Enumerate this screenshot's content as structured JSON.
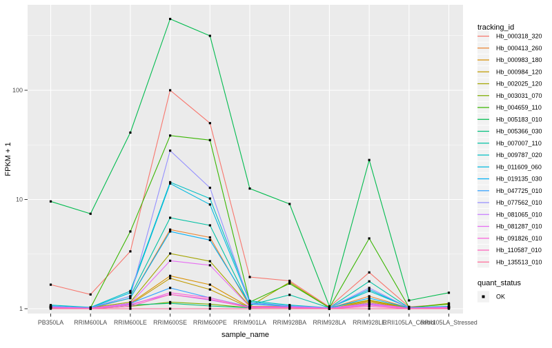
{
  "chart_data": {
    "type": "line",
    "title": "",
    "xlabel": "sample_name",
    "ylabel": "FPKM + 1",
    "y_scale": "log10",
    "y_ticks": [
      1,
      10,
      100
    ],
    "y_tick_labels": [
      "1",
      "10",
      "100"
    ],
    "y_minor_ticks": [
      3.162,
      31.62,
      316.2
    ],
    "ylim": [
      0.9,
      480
    ],
    "grid": "on",
    "panel_bg": "#EBEBEB",
    "grid_color": "#FFFFFF",
    "tick_text_color": "#4D4D4D",
    "axis_title_color": "#000000",
    "point_color": "#000000",
    "point_shape": "square",
    "categories": [
      "PB350LA",
      "RRIM600LA",
      "RRIM600LE",
      "RRIM600SE",
      "RRIM600PE",
      "RRIM901LA",
      "RRIM928BA",
      "RRIM928LA",
      "RRIM928LE",
      "RRII105LA_Control",
      "RRII105LA_Stressed"
    ],
    "series": [
      {
        "name": "Hb_000318_320",
        "color": "#F8766D",
        "values": [
          1.66,
          1.35,
          3.35,
          100,
          50,
          1.95,
          1.8,
          1.04,
          2.15,
          1.04,
          1.1
        ]
      },
      {
        "name": "Hb_000413_260",
        "color": "#EA8331",
        "values": [
          1.03,
          1.01,
          1.25,
          5.3,
          4.5,
          1.05,
          1.05,
          1.01,
          1.3,
          1.02,
          1.04
        ]
      },
      {
        "name": "Hb_000983_180",
        "color": "#D89000",
        "values": [
          1.02,
          1.0,
          1.12,
          2.0,
          1.66,
          1.03,
          1.04,
          1.0,
          1.18,
          1.01,
          1.03
        ]
      },
      {
        "name": "Hb_000984_120",
        "color": "#C09B00",
        "values": [
          1.02,
          1.0,
          1.1,
          1.9,
          1.5,
          1.02,
          1.03,
          1.0,
          1.15,
          1.01,
          1.02
        ]
      },
      {
        "name": "Hb_002025_120",
        "color": "#A3A500",
        "values": [
          1.04,
          1.02,
          1.15,
          3.2,
          2.72,
          1.05,
          1.75,
          1.02,
          1.2,
          1.02,
          1.12
        ]
      },
      {
        "name": "Hb_003031_070",
        "color": "#7CAE00",
        "values": [
          1.02,
          1.0,
          1.05,
          1.15,
          1.1,
          1.02,
          1.02,
          1.0,
          1.12,
          1.01,
          1.02
        ]
      },
      {
        "name": "Hb_004659_110",
        "color": "#39B600",
        "values": [
          1.05,
          1.02,
          5.1,
          38.5,
          35,
          1.15,
          1.7,
          1.02,
          4.4,
          1.03,
          1.1
        ]
      },
      {
        "name": "Hb_005183_010",
        "color": "#00BB4E",
        "values": [
          9.6,
          7.4,
          41,
          450,
          315,
          12.6,
          9.1,
          1.05,
          23,
          1.19,
          1.4
        ]
      },
      {
        "name": "Hb_005366_030",
        "color": "#00BF7D",
        "values": [
          1.03,
          1.01,
          1.08,
          1.12,
          1.06,
          1.02,
          1.03,
          1.01,
          1.1,
          1.01,
          1.02
        ]
      },
      {
        "name": "Hb_007007_110",
        "color": "#00C1A3",
        "values": [
          1.04,
          1.02,
          1.3,
          6.8,
          5.8,
          1.08,
          1.34,
          1.02,
          1.78,
          1.02,
          1.05
        ]
      },
      {
        "name": "Hb_009787_020",
        "color": "#00BFC4",
        "values": [
          1.08,
          1.03,
          1.45,
          14.4,
          10.2,
          1.18,
          1.08,
          1.02,
          1.45,
          1.03,
          1.05
        ]
      },
      {
        "name": "Hb_011609_060",
        "color": "#00BAE0",
        "values": [
          1.06,
          1.02,
          1.4,
          14.0,
          9.0,
          1.15,
          1.06,
          1.02,
          1.5,
          1.02,
          1.04
        ]
      },
      {
        "name": "Hb_019135_030",
        "color": "#00B0F6",
        "values": [
          1.05,
          1.02,
          1.25,
          5.1,
          4.25,
          1.1,
          1.05,
          1.01,
          1.25,
          1.02,
          1.04
        ]
      },
      {
        "name": "Hb_047725_010",
        "color": "#35A2FF",
        "values": [
          1.04,
          1.01,
          1.12,
          1.55,
          1.26,
          1.04,
          1.03,
          1.01,
          1.12,
          1.01,
          1.03
        ]
      },
      {
        "name": "Hb_077562_010",
        "color": "#9590FF",
        "values": [
          1.05,
          1.02,
          1.3,
          28,
          12.8,
          1.12,
          1.06,
          1.02,
          1.55,
          1.02,
          1.04
        ]
      },
      {
        "name": "Hb_081065_010",
        "color": "#C77CFF",
        "values": [
          1.03,
          1.01,
          1.1,
          1.35,
          1.2,
          1.03,
          1.03,
          1.01,
          1.1,
          1.01,
          1.02
        ]
      },
      {
        "name": "Hb_081287_010",
        "color": "#E76BF3",
        "values": [
          1.03,
          1.01,
          1.12,
          2.75,
          2.5,
          1.04,
          1.04,
          1.01,
          1.12,
          1.01,
          1.03
        ]
      },
      {
        "name": "Hb_091826_010",
        "color": "#FA62DB",
        "values": [
          1.02,
          1.01,
          1.08,
          1.4,
          1.26,
          1.03,
          1.03,
          1.0,
          1.08,
          1.01,
          1.02
        ]
      },
      {
        "name": "Hb_110587_010",
        "color": "#FF62BC",
        "values": [
          1.02,
          1.0,
          1.05,
          1.35,
          1.22,
          1.02,
          1.02,
          1.0,
          1.05,
          1.0,
          1.01
        ]
      },
      {
        "name": "Hb_135513_010",
        "color": "#FF6A98",
        "values": [
          1.0,
          1.0,
          1.0,
          1.0,
          1.0,
          1.0,
          1.0,
          1.0,
          1.0,
          1.0,
          1.0
        ]
      }
    ],
    "legend": {
      "position": "right",
      "color_legend_title": "tracking_id",
      "shape_legend_title": "quant_status",
      "shape_items": [
        {
          "label": "OK"
        }
      ],
      "key_bg": "#F2F2F2"
    }
  }
}
